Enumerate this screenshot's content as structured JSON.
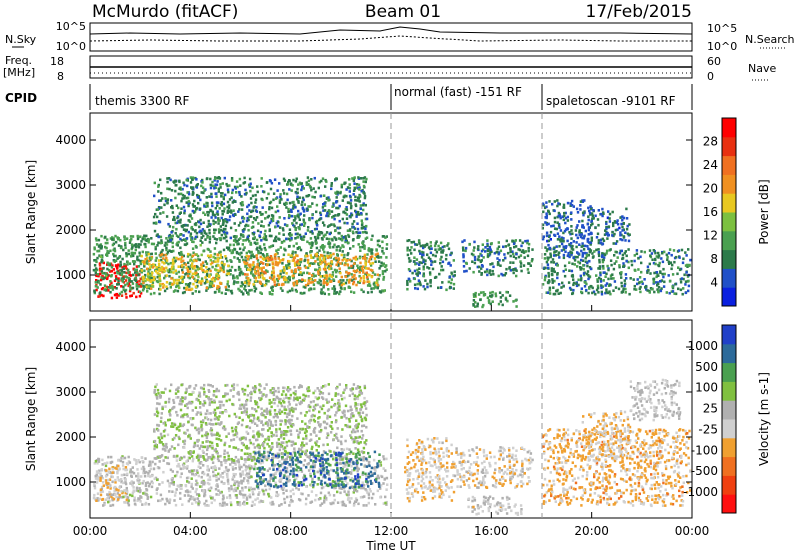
{
  "header": {
    "title": "McMurdo (fitACF)",
    "beam": "Beam 01",
    "date": "17/Feb/2015"
  },
  "params": {
    "nsky_label": "N.Sky",
    "nsky_ticks": [
      "10^5",
      "10^0"
    ],
    "nsearch_label": "N.Search",
    "nsearch_ticks": [
      "10^5",
      "10^0"
    ],
    "freq_label": "Freq.",
    "freq_unit": "[MHz]",
    "freq_ticks": [
      "18",
      "8"
    ],
    "nave_label": "Nave",
    "nave_ticks": [
      "60",
      "0"
    ],
    "cpid_label": "CPID"
  },
  "cpid_segments": [
    {
      "label": "themis 3300 RF",
      "start_hour": 0
    },
    {
      "label": "normal (fast) -151 RF",
      "start_hour": 12
    },
    {
      "label": "spaletoscan -9101 RF",
      "start_hour": 18.1
    }
  ],
  "colors": {
    "power_scale": [
      "#0a20e0",
      "#2050c8",
      "#2c7a4a",
      "#4aa050",
      "#7cc040",
      "#e8c820",
      "#f09020",
      "#f07020",
      "#e83010",
      "#ff0000"
    ],
    "velocity_scale": [
      "#ff1010",
      "#f04010",
      "#f07020",
      "#f0a030",
      "#d0d0d0",
      "#b0b0b0",
      "#80c040",
      "#4aa050",
      "#2c6a9a",
      "#2040c8"
    ]
  },
  "chart_data": [
    {
      "type": "heatmap",
      "name": "power",
      "xlabel": "",
      "ylabel": "Slant Range [km]",
      "yticks": [
        "1000",
        "2000",
        "3000",
        "4000"
      ],
      "ylim": [
        200,
        4600
      ],
      "xlim": [
        0,
        24
      ],
      "colorbar": {
        "label": "Power [dB]",
        "ticks": [
          "4",
          "8",
          "12",
          "16",
          "20",
          "24",
          "28"
        ],
        "range": [
          0,
          32
        ]
      },
      "regions": [
        {
          "t0": 0.2,
          "t1": 2.0,
          "r0": 500,
          "r1": 1300,
          "level": 30
        },
        {
          "t0": 0.1,
          "t1": 11.8,
          "r0": 600,
          "r1": 1900,
          "level": 10
        },
        {
          "t0": 2.0,
          "t1": 5.5,
          "r0": 700,
          "r1": 1500,
          "level": 18
        },
        {
          "t0": 6.0,
          "t1": 11.5,
          "r0": 800,
          "r1": 1500,
          "level": 20
        },
        {
          "t0": 2.5,
          "t1": 11.0,
          "r0": 1800,
          "r1": 3200,
          "level": 8
        },
        {
          "t0": 12.6,
          "t1": 14.5,
          "r0": 700,
          "r1": 1800,
          "level": 8
        },
        {
          "t0": 14.8,
          "t1": 17.6,
          "r0": 1000,
          "r1": 1800,
          "level": 8
        },
        {
          "t0": 15.2,
          "t1": 17.0,
          "r0": 300,
          "r1": 650,
          "level": 10
        },
        {
          "t0": 18.0,
          "t1": 23.9,
          "r0": 600,
          "r1": 1600,
          "level": 8
        },
        {
          "t0": 18.0,
          "t1": 20.0,
          "r0": 1400,
          "r1": 2700,
          "level": 6
        },
        {
          "t0": 19.8,
          "t1": 21.5,
          "r0": 1700,
          "r1": 2500,
          "level": 6
        }
      ]
    },
    {
      "type": "heatmap",
      "name": "velocity",
      "xlabel": "Time UT",
      "ylabel": "Slant Range [km]",
      "xticks": [
        "00:00",
        "04:00",
        "08:00",
        "12:00",
        "16:00",
        "20:00",
        "00:00"
      ],
      "yticks": [
        "1000",
        "2000",
        "3000",
        "4000"
      ],
      "ylim": [
        200,
        4600
      ],
      "xlim": [
        0,
        24
      ],
      "colorbar": {
        "label": "Velocity [m s-1]",
        "ticks": [
          "1000",
          "500",
          "100",
          "25",
          "-25",
          "-100",
          "-500",
          "-1000"
        ],
        "range": [
          -1200,
          1200
        ]
      },
      "regions": [
        {
          "t0": 0.1,
          "t1": 11.8,
          "r0": 500,
          "r1": 1600,
          "level": 60
        },
        {
          "t0": 0.1,
          "t1": 1.5,
          "r0": 600,
          "r1": 1400,
          "level": -150
        },
        {
          "t0": 2.5,
          "t1": 11.0,
          "r0": 1500,
          "r1": 3200,
          "level": 200
        },
        {
          "t0": 6.5,
          "t1": 11.5,
          "r0": 900,
          "r1": 1700,
          "level": 800
        },
        {
          "t0": 12.5,
          "t1": 14.5,
          "r0": 600,
          "r1": 2000,
          "level": -200
        },
        {
          "t0": 14.5,
          "t1": 17.6,
          "r0": 900,
          "r1": 1800,
          "level": -150
        },
        {
          "t0": 15.0,
          "t1": 17.2,
          "r0": 300,
          "r1": 700,
          "level": -30
        },
        {
          "t0": 18.0,
          "t1": 23.9,
          "r0": 500,
          "r1": 2200,
          "level": -300
        },
        {
          "t0": 19.5,
          "t1": 21.5,
          "r0": 1500,
          "r1": 2600,
          "level": -250
        },
        {
          "t0": 21.5,
          "t1": 23.5,
          "r0": 2400,
          "r1": 3300,
          "level": 10
        }
      ]
    }
  ]
}
